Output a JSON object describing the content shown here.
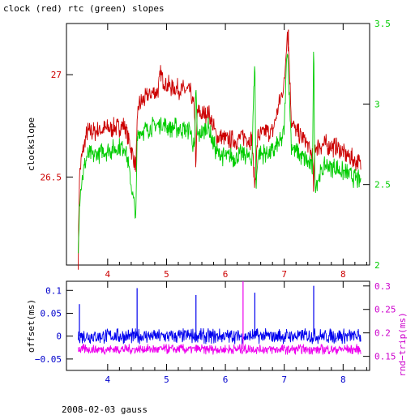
{
  "chart_data": [
    {
      "type": "line",
      "title": "clock (red) rtc (green) slopes",
      "xlabel": "",
      "ylabel": "clockslope",
      "xlim": [
        3.3,
        8.45
      ],
      "x_ticks": [
        4,
        5,
        6,
        7,
        8
      ],
      "x_tick_labels": [
        "4",
        "5",
        "6",
        "7",
        "8"
      ],
      "x_tick_color": "#cc0000",
      "ylim_left": [
        26.07,
        27.25
      ],
      "y_left_ticks": [
        26.5,
        27
      ],
      "y_left_tick_labels": [
        "26.5",
        "27"
      ],
      "y_left_color": "#cc0000",
      "ylim_right": [
        2.0,
        3.5
      ],
      "y_right_ticks": [
        2,
        2.5,
        3,
        3.5
      ],
      "y_right_tick_labels": [
        "2",
        "2.5",
        "3",
        "3.5"
      ],
      "y_right_color": "#00cc00",
      "series": [
        {
          "name": "clock",
          "axis": "left",
          "color": "#cc0000",
          "x": [
            3.5,
            3.52,
            3.55,
            3.6,
            3.65,
            3.75,
            3.9,
            4.1,
            4.3,
            4.48,
            4.5,
            4.52,
            4.7,
            4.85,
            4.9,
            5.0,
            5.2,
            5.4,
            5.48,
            5.5,
            5.52,
            5.6,
            5.7,
            5.85,
            6.0,
            6.2,
            6.3,
            6.45,
            6.5,
            6.55,
            6.7,
            6.8,
            6.95,
            7.0,
            7.05,
            7.08,
            7.12,
            7.2,
            7.35,
            7.48,
            7.5,
            7.52,
            7.7,
            7.9,
            8.1,
            8.3
          ],
          "y": [
            26.1,
            26.5,
            26.58,
            26.65,
            26.72,
            26.72,
            26.73,
            26.74,
            26.75,
            26.55,
            26.72,
            26.85,
            26.9,
            26.92,
            27.0,
            26.95,
            26.93,
            26.92,
            26.82,
            26.5,
            26.82,
            26.8,
            26.82,
            26.7,
            26.68,
            26.68,
            26.7,
            26.68,
            26.45,
            26.7,
            26.72,
            26.72,
            26.9,
            26.95,
            27.22,
            27.1,
            26.78,
            26.72,
            26.68,
            26.6,
            26.42,
            26.65,
            26.66,
            26.64,
            26.6,
            26.56
          ]
        },
        {
          "name": "rtc",
          "axis": "right",
          "color": "#00cc00",
          "x": [
            3.5,
            3.52,
            3.55,
            3.6,
            3.65,
            3.75,
            3.9,
            4.1,
            4.3,
            4.48,
            4.5,
            4.52,
            4.7,
            4.85,
            4.9,
            5.0,
            5.2,
            5.4,
            5.48,
            5.5,
            5.52,
            5.6,
            5.7,
            5.85,
            6.0,
            6.2,
            6.3,
            6.45,
            6.5,
            6.52,
            6.55,
            6.7,
            6.8,
            6.95,
            7.0,
            7.05,
            7.08,
            7.12,
            7.2,
            7.35,
            7.48,
            7.5,
            7.52,
            7.7,
            7.9,
            8.1,
            8.3
          ],
          "y": [
            2.05,
            2.4,
            2.5,
            2.6,
            2.68,
            2.68,
            2.7,
            2.72,
            2.74,
            2.3,
            2.75,
            2.82,
            2.85,
            2.87,
            2.88,
            2.86,
            2.85,
            2.84,
            2.7,
            3.15,
            2.8,
            2.82,
            2.86,
            2.7,
            2.67,
            2.67,
            2.7,
            2.65,
            3.3,
            2.45,
            2.68,
            2.7,
            2.7,
            2.77,
            2.85,
            3.38,
            3.1,
            2.75,
            2.7,
            2.66,
            2.6,
            3.4,
            2.5,
            2.62,
            2.6,
            2.56,
            2.52
          ]
        }
      ],
      "spikes": [
        {
          "series": "rtc",
          "x": 5.5,
          "y_to": 3.15
        },
        {
          "series": "rtc",
          "x": 6.5,
          "y_to": 3.3
        },
        {
          "series": "rtc",
          "x": 7.5,
          "y_to": 3.4
        },
        {
          "series": "clock",
          "x": 7.07,
          "y_to": 27.22
        }
      ]
    },
    {
      "type": "line",
      "title": "",
      "xlabel": "",
      "ylabel": "offset(ms)",
      "ylabel_right": "rnd−trip(ms)",
      "xlim": [
        3.3,
        8.45
      ],
      "x_ticks": [
        4,
        5,
        6,
        7,
        8
      ],
      "x_tick_labels": [
        "4",
        "5",
        "6",
        "7",
        "8"
      ],
      "x_tick_color": "#0000cc",
      "ylim_left": [
        -0.075,
        0.12
      ],
      "y_left_ticks": [
        -0.05,
        0,
        0.05,
        0.1
      ],
      "y_left_tick_labels": [
        "−0.05",
        "0",
        "0.05",
        "0.1"
      ],
      "y_left_color": "#0000cc",
      "ylim_right": [
        0.12,
        0.31
      ],
      "y_right_ticks": [
        0.15,
        0.2,
        0.25,
        0.3
      ],
      "y_right_tick_labels": [
        "0.15",
        "0.2",
        "0.25",
        "0.3"
      ],
      "y_right_color": "#cc00cc",
      "series": [
        {
          "name": "offset",
          "axis": "left",
          "color": "#0000ee",
          "x": [
            3.5,
            4.0,
            4.5,
            5.0,
            5.5,
            6.0,
            6.5,
            7.0,
            7.5,
            8.0,
            8.3
          ],
          "y": [
            0.0,
            0.0,
            0.0,
            0.0,
            0.0,
            0.0,
            0.0,
            0.0,
            0.0,
            0.0,
            0.0
          ]
        },
        {
          "name": "rnd-trip",
          "axis": "right",
          "color": "#ee00ee",
          "x": [
            3.5,
            4.0,
            4.5,
            5.0,
            5.5,
            6.0,
            6.5,
            7.0,
            7.5,
            8.0,
            8.3
          ],
          "y": [
            0.165,
            0.165,
            0.165,
            0.165,
            0.165,
            0.165,
            0.165,
            0.165,
            0.165,
            0.165,
            0.165
          ]
        }
      ],
      "spikes": [
        {
          "series": "offset",
          "x": 3.52,
          "y_to": 0.07
        },
        {
          "series": "offset",
          "x": 4.5,
          "y_to": 0.105
        },
        {
          "series": "offset",
          "x": 5.5,
          "y_to": 0.09
        },
        {
          "series": "offset",
          "x": 6.5,
          "y_to": 0.095
        },
        {
          "series": "offset",
          "x": 7.5,
          "y_to": 0.11
        },
        {
          "series": "rnd-trip",
          "x": 6.3,
          "y_to": 0.31
        }
      ]
    }
  ],
  "footer": {
    "caption": "2008-02-03 gauss"
  }
}
